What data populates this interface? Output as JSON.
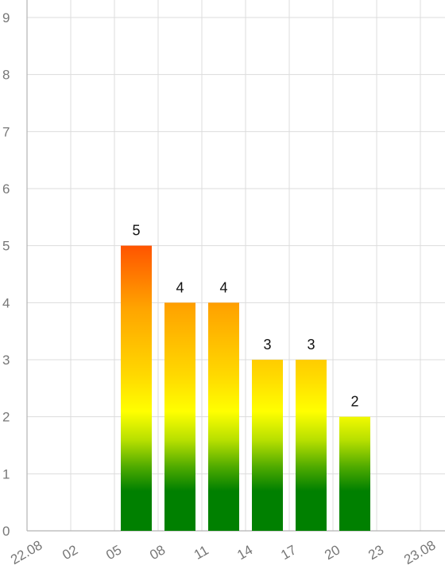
{
  "chart_data": {
    "type": "bar",
    "title": "",
    "xlabel": "",
    "ylabel": "",
    "ylim": [
      0,
      9
    ],
    "yticks": [
      0,
      1,
      2,
      3,
      4,
      5,
      6,
      7,
      8,
      9
    ],
    "grid": true,
    "legend": "none",
    "x_tick_labels": [
      "22.08",
      "02",
      "05",
      "08",
      "11",
      "14",
      "17",
      "20",
      "23",
      "23.08"
    ],
    "categories": [
      "08",
      "11",
      "14",
      "17",
      "20",
      "23"
    ],
    "values": [
      5,
      4,
      4,
      3,
      3,
      2
    ],
    "data_labels": [
      "5",
      "4",
      "4",
      "3",
      "3",
      "2"
    ],
    "colors": {
      "bar_gradient": [
        "#ff5500",
        "#ffa500",
        "#ffff00",
        "#008000"
      ],
      "grid": "#dcdcdc",
      "axis": "#b5b5b5",
      "tick_text": "#777777",
      "label_text": "#111111"
    }
  }
}
